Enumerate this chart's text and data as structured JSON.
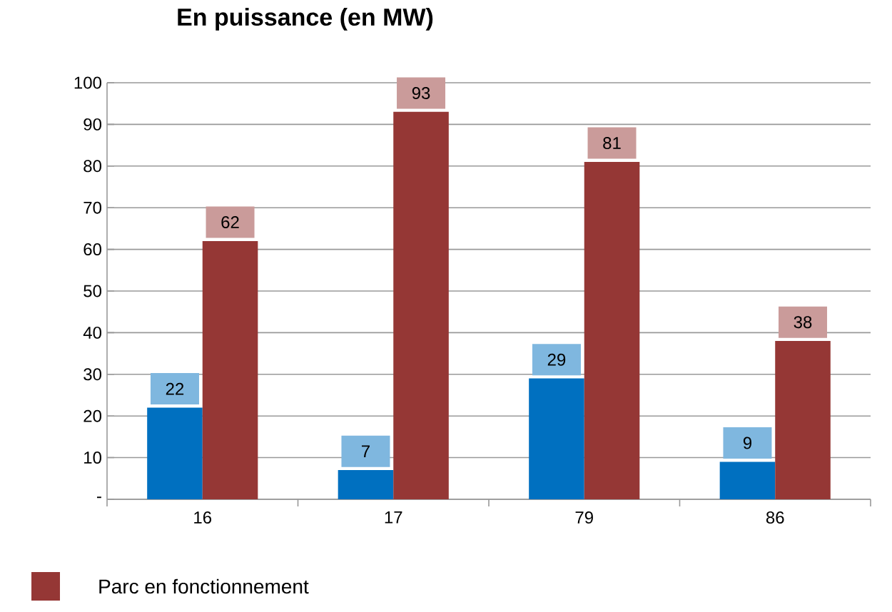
{
  "chart_data": {
    "type": "bar",
    "title": "En puissance (en MW)",
    "categories": [
      "16",
      "17",
      "79",
      "86"
    ],
    "series": [
      {
        "color": "#0070c0",
        "values": [
          22,
          7,
          29,
          9
        ]
      },
      {
        "name": "Parc en fonctionnement",
        "color": "#953735",
        "values": [
          62,
          93,
          81,
          38
        ]
      }
    ],
    "ylim": [
      0,
      100
    ],
    "yticks": [
      {
        "value": 0,
        "label": "-"
      },
      10,
      20,
      30,
      40,
      50,
      60,
      70,
      80,
      90,
      100
    ],
    "grid": "y",
    "legend": "bottom left",
    "data_labels": true
  }
}
